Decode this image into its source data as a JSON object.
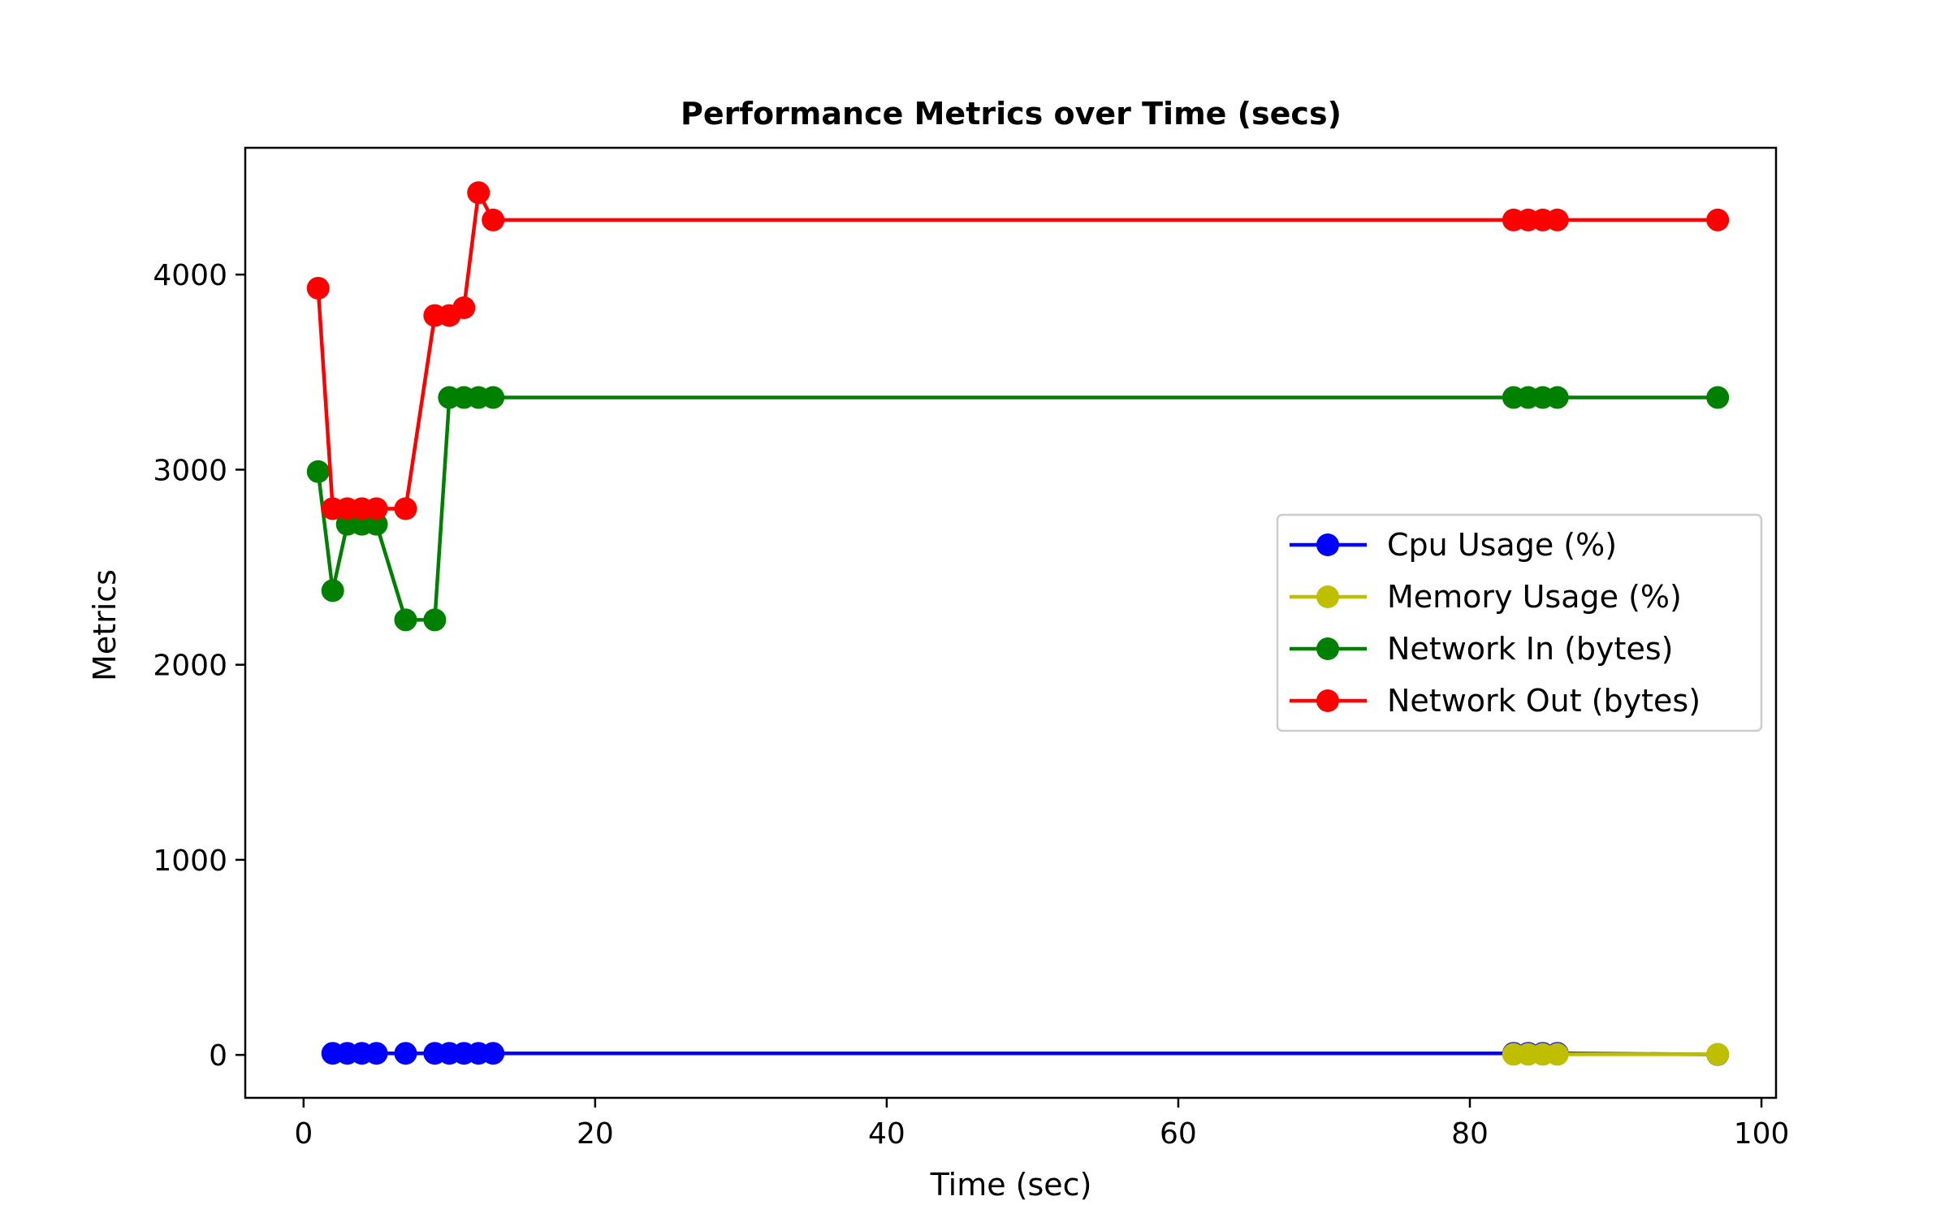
{
  "chart_data": {
    "type": "line",
    "title": "Performance Metrics over Time (secs)",
    "xlabel": "Time (sec)",
    "ylabel": "Metrics",
    "xlim": [
      -4,
      101
    ],
    "ylim": [
      -220,
      4650
    ],
    "xticks": [
      0,
      20,
      40,
      60,
      80,
      100
    ],
    "yticks": [
      0,
      1000,
      2000,
      3000,
      4000
    ],
    "grid": false,
    "legend_position": "center-right",
    "series": [
      {
        "name": "Cpu Usage (%)",
        "color": "#0000ff",
        "points": [
          [
            2,
            8
          ],
          [
            3,
            8
          ],
          [
            4,
            8
          ],
          [
            5,
            8
          ],
          [
            7,
            8
          ],
          [
            9,
            8
          ],
          [
            10,
            8
          ],
          [
            11,
            8
          ],
          [
            12,
            8
          ],
          [
            13,
            8
          ],
          [
            83,
            8
          ],
          [
            84,
            8
          ],
          [
            85,
            8
          ],
          [
            86,
            8
          ],
          [
            97,
            2
          ]
        ]
      },
      {
        "name": "Memory Usage (%)",
        "color": "#bfbf00",
        "points": [
          [
            83,
            3
          ],
          [
            84,
            3
          ],
          [
            85,
            3
          ],
          [
            86,
            3
          ],
          [
            97,
            3
          ]
        ]
      },
      {
        "name": "Network In (bytes)",
        "color": "#008000",
        "points": [
          [
            1,
            2990
          ],
          [
            2,
            2380
          ],
          [
            3,
            2720
          ],
          [
            4,
            2720
          ],
          [
            5,
            2720
          ],
          [
            7,
            2230
          ],
          [
            9,
            2230
          ],
          [
            10,
            3370
          ],
          [
            11,
            3370
          ],
          [
            12,
            3370
          ],
          [
            13,
            3370
          ],
          [
            83,
            3370
          ],
          [
            84,
            3370
          ],
          [
            85,
            3370
          ],
          [
            86,
            3370
          ],
          [
            97,
            3370
          ]
        ]
      },
      {
        "name": "Network Out (bytes)",
        "color": "#ff0000",
        "points": [
          [
            1,
            3930
          ],
          [
            2,
            2800
          ],
          [
            3,
            2800
          ],
          [
            4,
            2800
          ],
          [
            5,
            2800
          ],
          [
            7,
            2800
          ],
          [
            9,
            3790
          ],
          [
            10,
            3790
          ],
          [
            11,
            3830
          ],
          [
            12,
            4420
          ],
          [
            13,
            4280
          ],
          [
            83,
            4280
          ],
          [
            84,
            4280
          ],
          [
            85,
            4280
          ],
          [
            86,
            4280
          ],
          [
            97,
            4280
          ]
        ]
      }
    ]
  }
}
